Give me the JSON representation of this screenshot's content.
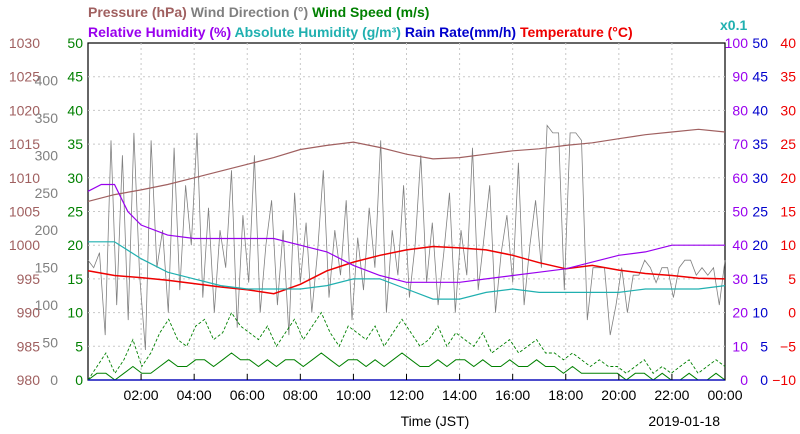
{
  "chart_data": {
    "type": "line",
    "date_label": "2019-01-18",
    "xlabel": "Time (JST)",
    "x_range_hours": [
      0,
      24
    ],
    "x_ticks": [
      "02:00",
      "04:00",
      "06:00",
      "08:00",
      "10:00",
      "12:00",
      "14:00",
      "16:00",
      "18:00",
      "20:00",
      "22:00",
      "00:00"
    ],
    "grid": true,
    "legend_row1": [
      {
        "text": "Pressure (hPa)",
        "color": "#a06060"
      },
      {
        "text": "Wind Direction (°)",
        "color": "#808080"
      },
      {
        "text": "Wind Speed (m/s)",
        "color": "#008000"
      }
    ],
    "legend_row2": [
      {
        "text": "Relative Humidity (%)",
        "color": "#9900ee"
      },
      {
        "text": "Absolute Humidity (g/m³)",
        "color": "#20b0b0"
      },
      {
        "text": "Rain Rate(mm/h)",
        "color": "#0000cc"
      },
      {
        "text": "Temperature (°C)",
        "color": "#ee0000"
      }
    ],
    "abs_humidity_scale_note": "x0.1",
    "axes": {
      "pressure": {
        "ticks": [
          "1030",
          "1025",
          "1020",
          "1015",
          "1010",
          "1005",
          "1000",
          "995",
          "990",
          "985",
          "980"
        ],
        "range": [
          980,
          1030
        ],
        "color": "#a06060"
      },
      "wind_direction": {
        "ticks": [
          "350",
          "300",
          "250",
          "200",
          "150",
          "100",
          "50",
          "0"
        ],
        "tick_values": [
          350,
          300,
          250,
          200,
          150,
          100,
          50,
          0
        ],
        "top_label": "400",
        "top_label_value": 400,
        "range": [
          0,
          450
        ],
        "color": "#808080"
      },
      "wind_speed": {
        "ticks": [
          "50",
          "45",
          "40",
          "35",
          "30",
          "25",
          "20",
          "15",
          "10",
          "5",
          "0"
        ],
        "range": [
          0,
          50
        ],
        "color": "#008000"
      },
      "relative_humidity": {
        "ticks": [
          "100",
          "90",
          "80",
          "70",
          "60",
          "50",
          "40",
          "30",
          "20",
          "10",
          "0"
        ],
        "range": [
          0,
          100
        ],
        "color": "#9900ee"
      },
      "rain_rate": {
        "ticks": [
          "50",
          "45",
          "40",
          "35",
          "30",
          "25",
          "20",
          "15",
          "10",
          "5",
          "0"
        ],
        "range": [
          0,
          50
        ],
        "color": "#0000cc"
      },
      "temperature": {
        "ticks": [
          "40",
          "35",
          "30",
          "25",
          "20",
          "15",
          "10",
          "5",
          "0",
          "−5",
          "−10"
        ],
        "range": [
          -10,
          40
        ],
        "color": "#ee0000"
      }
    },
    "series": [
      {
        "key": "pressure",
        "color": "#a06060",
        "x": [
          0,
          1,
          2,
          3,
          4,
          5,
          6,
          7,
          8,
          9,
          10,
          11,
          12,
          13,
          14,
          15,
          16,
          17,
          18,
          19,
          20,
          21,
          22,
          23,
          24
        ],
        "y": [
          1006.5,
          1007.5,
          1008.2,
          1009.0,
          1010.0,
          1011.0,
          1012.0,
          1013.0,
          1014.2,
          1014.8,
          1015.3,
          1014.5,
          1013.5,
          1012.8,
          1013.0,
          1013.5,
          1014.0,
          1014.3,
          1014.8,
          1015.2,
          1015.8,
          1016.4,
          1016.8,
          1017.2,
          1016.8
        ]
      },
      {
        "key": "temperature",
        "color": "#ee0000",
        "x": [
          0,
          1,
          2,
          3,
          4,
          5,
          6,
          7,
          8,
          9,
          10,
          11,
          12,
          13,
          14,
          15,
          16,
          17,
          18,
          19,
          20,
          21,
          22,
          23,
          24
        ],
        "y": [
          6.2,
          5.5,
          5.2,
          4.8,
          4.3,
          3.8,
          3.4,
          2.8,
          4.2,
          6.2,
          7.5,
          8.5,
          9.3,
          9.8,
          9.6,
          9.3,
          8.5,
          7.4,
          6.5,
          7.0,
          6.3,
          5.8,
          5.5,
          5.1,
          5.0
        ]
      },
      {
        "key": "relative_humidity",
        "color": "#9900ee",
        "x": [
          0,
          0.5,
          1,
          1.5,
          2,
          3,
          4,
          5,
          6,
          7,
          8,
          9,
          10,
          11,
          12,
          13,
          14,
          15,
          16,
          17,
          18,
          19,
          20,
          21,
          22,
          23,
          24
        ],
        "y": [
          56,
          58,
          58,
          50,
          46,
          43,
          42,
          42,
          42,
          42,
          40,
          38,
          34,
          31,
          29,
          29,
          29,
          30,
          31,
          32,
          33,
          35,
          37,
          38,
          40,
          40,
          40
        ]
      },
      {
        "key": "abs_humidity",
        "color": "#20b0b0",
        "x": [
          0,
          1,
          2,
          3,
          4,
          5,
          6,
          7,
          8,
          9,
          10,
          11,
          12,
          13,
          14,
          15,
          16,
          17,
          18,
          19,
          20,
          21,
          22,
          23,
          24
        ],
        "y": [
          41,
          41,
          36,
          32,
          30,
          28,
          27,
          27,
          27,
          28,
          30,
          30,
          27,
          24,
          24,
          26,
          27,
          26,
          26,
          26,
          26,
          27,
          27,
          27,
          28
        ]
      },
      {
        "key": "rain_rate",
        "color": "#0000cc",
        "x": [
          0,
          24
        ],
        "y": [
          0,
          0
        ]
      }
    ],
    "wind_direction_samples": [
      160,
      150,
      170,
      60,
      320,
      100,
      300,
      80,
      330,
      140,
      40,
      320,
      150,
      200,
      90,
      310,
      120,
      260,
      180,
      330,
      110,
      230,
      90,
      200,
      150,
      280,
      70,
      220,
      130,
      300,
      90,
      180,
      240,
      100,
      200,
      60,
      250,
      130,
      210,
      90,
      170,
      280,
      110,
      200,
      140,
      240,
      80,
      190,
      120,
      230,
      150,
      320,
      90,
      200,
      140,
      260,
      110,
      180,
      300,
      130,
      210,
      100,
      170,
      250,
      90,
      200,
      140,
      310,
      120,
      190,
      260,
      90,
      170,
      220,
      130,
      290,
      100,
      180,
      240,
      150,
      340,
      330,
      330,
      120,
      330,
      330,
      320,
      80,
      150,
      150,
      150,
      60,
      100,
      150,
      90,
      140,
      140,
      160,
      150,
      130,
      150,
      150,
      110,
      150,
      160,
      160,
      140,
      150,
      140,
      150,
      100,
      160
    ],
    "wind_speed_avg_samples": [
      0,
      1,
      1,
      0,
      1,
      2,
      1,
      1,
      2,
      3,
      2,
      2,
      3,
      3,
      2,
      3,
      4,
      3,
      3,
      2,
      3,
      2,
      3,
      3,
      2,
      3,
      4,
      3,
      2,
      3,
      3,
      2,
      3,
      2,
      3,
      4,
      3,
      2,
      2,
      3,
      2,
      3,
      3,
      2,
      3,
      2,
      2,
      3,
      2,
      2,
      3,
      2,
      2,
      1,
      2,
      1,
      1,
      1,
      1,
      1,
      0,
      1,
      1,
      0,
      1,
      0,
      0,
      1,
      0,
      0,
      1,
      0
    ],
    "wind_speed_gust_samples": [
      0,
      2,
      4,
      1,
      3,
      6,
      2,
      4,
      7,
      9,
      6,
      5,
      8,
      9,
      6,
      7,
      10,
      8,
      7,
      6,
      8,
      5,
      7,
      9,
      6,
      8,
      10,
      7,
      5,
      8,
      7,
      6,
      8,
      5,
      7,
      9,
      7,
      5,
      6,
      8,
      5,
      7,
      6,
      5,
      7,
      4,
      5,
      6,
      4,
      5,
      6,
      4,
      4,
      3,
      4,
      3,
      2,
      3,
      2,
      2,
      1,
      2,
      3,
      1,
      2,
      1,
      2,
      3,
      1,
      2,
      3,
      2
    ]
  }
}
